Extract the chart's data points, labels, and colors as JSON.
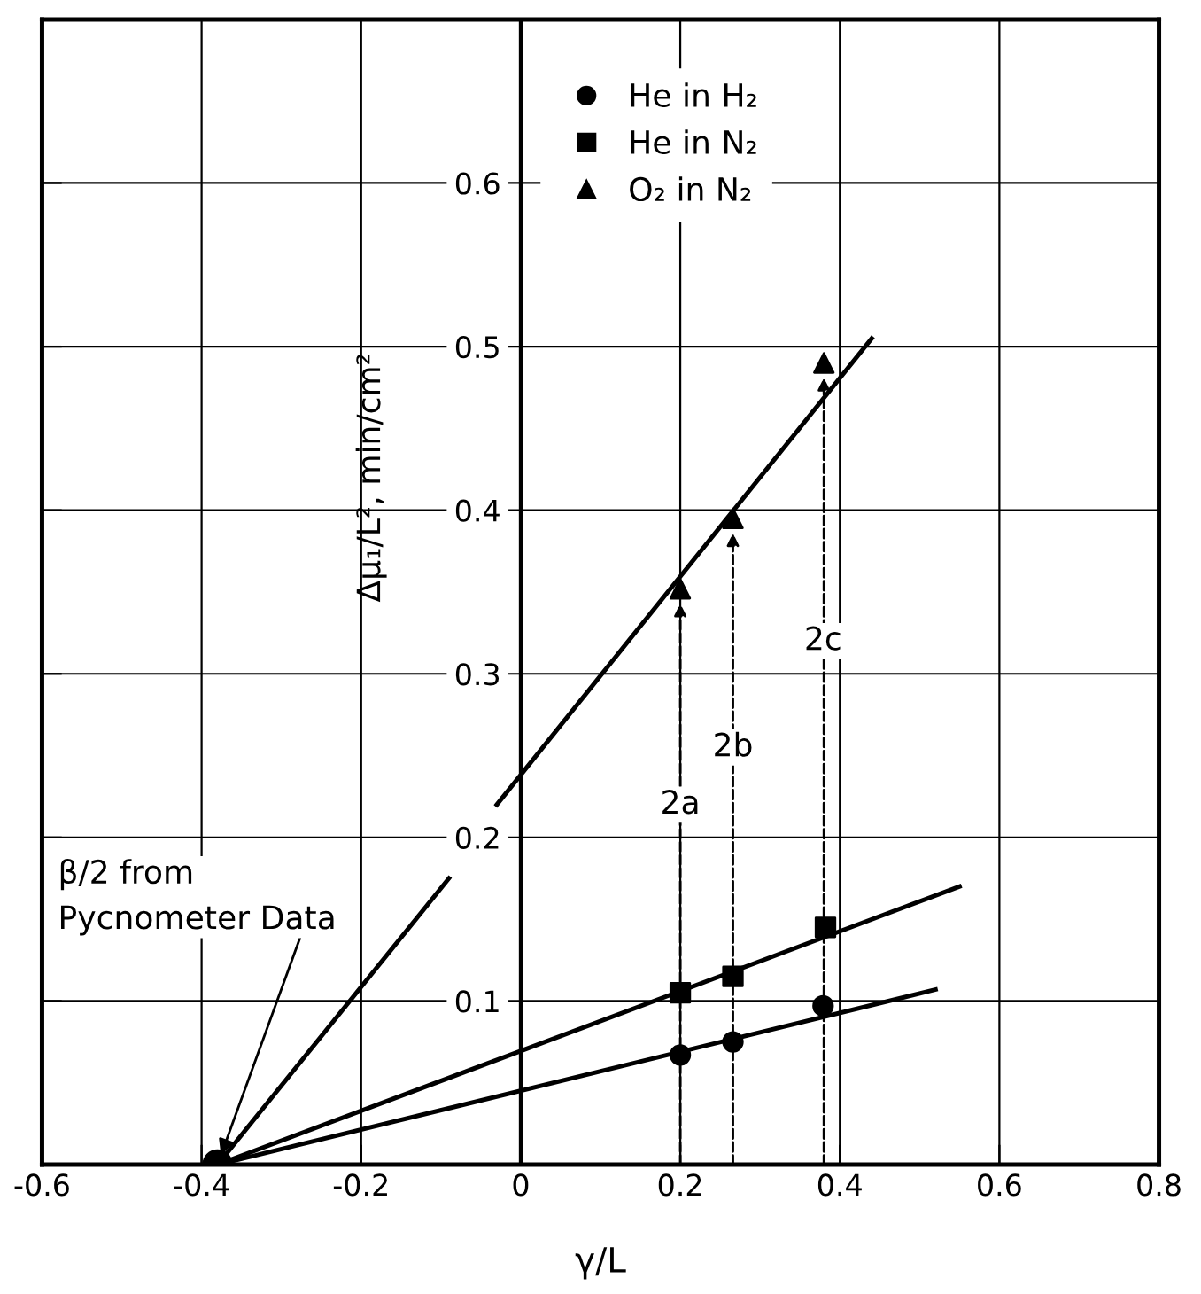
{
  "chart_data": {
    "type": "scatter",
    "xlabel": "γ/L",
    "ylabel": "Δμ₁/L², min/cm²",
    "xlim": [
      -0.6,
      0.8
    ],
    "xticks": [
      -0.6,
      -0.4,
      -0.2,
      0,
      0.2,
      0.4,
      0.6,
      0.8
    ],
    "ylim": [
      0,
      0.7
    ],
    "yticks": [
      0.1,
      0.2,
      0.3,
      0.4,
      0.5,
      0.6
    ],
    "grid": true,
    "legend": "top",
    "series": [
      {
        "name": "He in H₂",
        "marker": "circle",
        "color": "#000000",
        "x": [
          0.2,
          0.266,
          0.379
        ],
        "values": [
          0.067,
          0.075,
          0.097
        ]
      },
      {
        "name": "He in N₂",
        "marker": "square",
        "color": "#000000",
        "x": [
          0.2,
          0.266,
          0.382
        ],
        "values": [
          0.105,
          0.115,
          0.145
        ]
      },
      {
        "name": "O₂ in N₂",
        "marker": "triangle",
        "color": "#000000",
        "x": [
          0.2,
          0.266,
          0.38
        ],
        "values": [
          0.352,
          0.395,
          0.49
        ]
      },
      {
        "marker": "circle",
        "color": "#000000",
        "x": [
          -0.38
        ],
        "values": [
          0
        ]
      },
      {
        "type": "line",
        "color": "#000000",
        "line_style": "solid",
        "x": [
          -0.38,
          0.52
        ],
        "values": [
          0,
          0.107
        ]
      },
      {
        "type": "line",
        "color": "#000000",
        "line_style": "solid",
        "x": [
          -0.38,
          0.55
        ],
        "values": [
          0,
          0.17
        ]
      },
      {
        "type": "line",
        "color": "#000000",
        "line_style": "solid",
        "x": [
          -0.38,
          -0.09
        ],
        "values": [
          0,
          0.175
        ]
      },
      {
        "type": "line",
        "color": "#000000",
        "line_style": "solid",
        "x": [
          -0.03,
          0.44
        ],
        "values": [
          0.22,
          0.505
        ]
      }
    ],
    "annotations": [
      {
        "text": "β/2 from\nPycnometer Data",
        "x": -0.38,
        "y": 0
      },
      {
        "text": "2a",
        "x": 0.2,
        "y": 0.22
      },
      {
        "text": "2b",
        "x": 0.266,
        "y": 0.255
      },
      {
        "text": "2c",
        "x": 0.379,
        "y": 0.32
      }
    ]
  }
}
